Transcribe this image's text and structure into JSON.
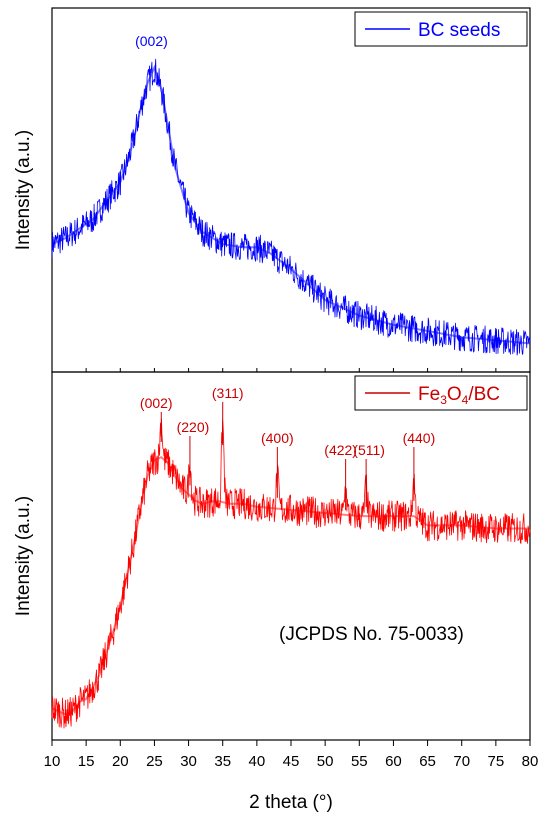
{
  "chart_data": [
    {
      "type": "line",
      "panel": "top",
      "ylabel": "Intensity (a.u.)",
      "xlim": [
        10,
        80
      ],
      "yticks_shown": false,
      "color": "#0000ff",
      "legend": {
        "label": "BC seeds",
        "placement": "top-right"
      },
      "series": [
        {
          "name": "BC seeds",
          "x": [
            10,
            12,
            14,
            16,
            18,
            20,
            21,
            22,
            23,
            24,
            25,
            26,
            27,
            28,
            30,
            32,
            35,
            38,
            40,
            42,
            45,
            48,
            50,
            55,
            60,
            65,
            70,
            75,
            80
          ],
          "y": [
            0.38,
            0.4,
            0.43,
            0.46,
            0.52,
            0.58,
            0.64,
            0.72,
            0.82,
            0.9,
            0.95,
            0.88,
            0.76,
            0.63,
            0.48,
            0.42,
            0.38,
            0.37,
            0.37,
            0.35,
            0.3,
            0.24,
            0.2,
            0.15,
            0.12,
            0.1,
            0.08,
            0.07,
            0.06
          ]
        }
      ],
      "annotations": [
        {
          "text": "(002)",
          "x": 25
        }
      ]
    },
    {
      "type": "line",
      "panel": "bottom",
      "xlabel": "2 theta (°)",
      "ylabel": "Intensity (a.u.)",
      "xlim": [
        10,
        80
      ],
      "xticks": [
        10,
        15,
        20,
        25,
        30,
        35,
        40,
        45,
        50,
        55,
        60,
        65,
        70,
        75,
        80
      ],
      "yticks_shown": false,
      "color": "#ff0000",
      "legend": {
        "label_main": "Fe",
        "sub1": "3",
        "label_mid": "O",
        "sub2": "4",
        "label_tail": "/BC",
        "placement": "top-right"
      },
      "note": "(JCPDS No. 75-0033)",
      "series": [
        {
          "name": "Fe3O4/BC",
          "x": [
            10,
            11,
            12,
            13,
            14,
            15,
            16,
            17,
            18,
            19,
            20,
            21,
            22,
            23,
            24,
            25,
            26,
            27,
            28,
            29,
            30,
            31,
            32,
            34,
            36,
            38,
            40,
            45,
            50,
            55,
            60,
            63,
            65,
            70,
            75,
            80
          ],
          "y": [
            0.07,
            0.06,
            0.05,
            0.06,
            0.09,
            0.1,
            0.14,
            0.18,
            0.25,
            0.32,
            0.4,
            0.5,
            0.6,
            0.72,
            0.82,
            0.87,
            0.88,
            0.86,
            0.82,
            0.78,
            0.76,
            0.74,
            0.73,
            0.74,
            0.73,
            0.73,
            0.72,
            0.71,
            0.7,
            0.69,
            0.69,
            0.69,
            0.66,
            0.66,
            0.65,
            0.65
          ]
        }
      ],
      "annotations": [
        {
          "text": "(002)",
          "x": 26,
          "peak": 1.0
        },
        {
          "text": "(220)",
          "x": 30.2,
          "peak": 0.86
        },
        {
          "text": "(311)",
          "x": 35,
          "peak": 0.99
        },
        {
          "text": "(400)",
          "x": 43,
          "peak": 0.82
        },
        {
          "text": "(422)",
          "x": 53,
          "peak": 0.78
        },
        {
          "text": "(511)",
          "x": 56,
          "peak": 0.79
        },
        {
          "text": "(440)",
          "x": 63,
          "peak": 0.81
        }
      ]
    }
  ]
}
